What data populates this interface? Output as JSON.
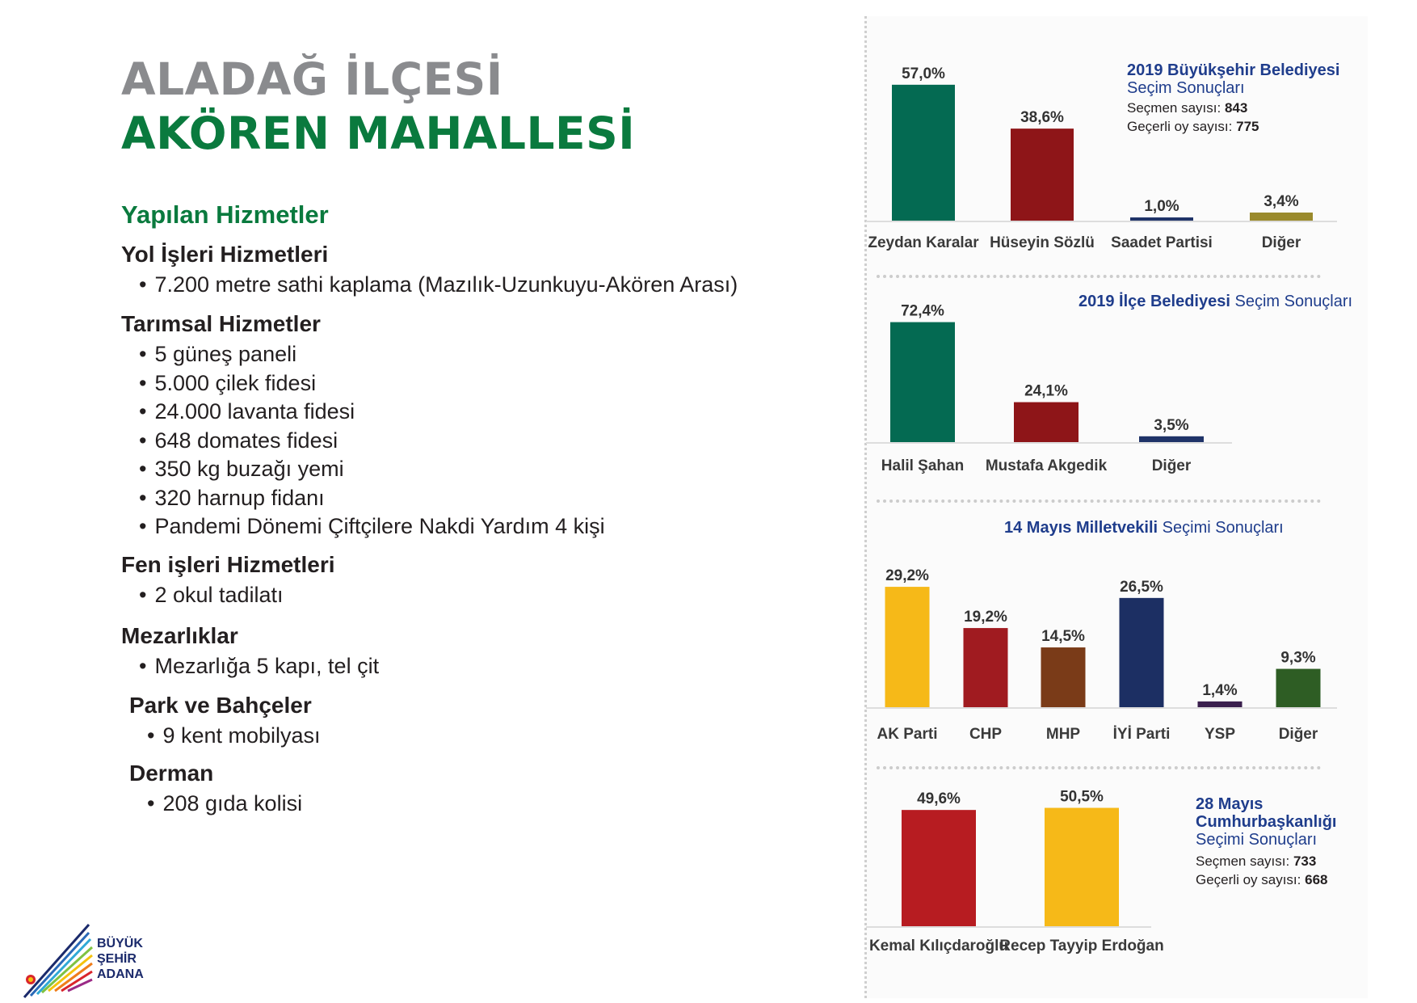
{
  "header": {
    "title_line1": "ALADAĞ İLÇESİ",
    "title_line2": "AKÖREN MAHALLESİ"
  },
  "services": {
    "heading": "Yapılan Hizmetler",
    "sections": [
      {
        "title": "Yol İşleri Hizmetleri",
        "items": [
          "7.200 metre sathi kaplama (Mazılık-Uzunkuyu-Akören Arası)"
        ]
      },
      {
        "title": "Tarımsal Hizmetler",
        "items": [
          "5 güneş paneli",
          "5.000 çilek fidesi",
          "24.000 lavanta fidesi",
          "648 domates fidesi",
          "350 kg buzağı yemi",
          "320 harnup fidanı",
          "Pandemi Dönemi Çiftçilere Nakdi Yardım 4 kişi"
        ]
      },
      {
        "title": "Fen işleri Hizmetleri",
        "items": [
          "2 okul tadilatı"
        ]
      },
      {
        "title": "Mezarlıklar",
        "items": [
          "Mezarlığa 5 kapı, tel çit"
        ]
      },
      {
        "title": "Park ve Bahçeler",
        "items": [
          "9 kent mobilyası"
        ]
      },
      {
        "title": "Derman",
        "items": [
          "208 gıda kolisi"
        ]
      }
    ]
  },
  "logo": {
    "line1": "BÜYÜK",
    "line2": "ŞEHİR",
    "line3": "ADANA"
  },
  "info_blocks": {
    "metro": {
      "title_bold": "2019 Büyükşehir Belediyesi",
      "title_light": "Seçim Sonuçları",
      "voters_label": "Seçmen sayısı: ",
      "voters_value": "843",
      "valid_label": "Geçerli oy sayısı: ",
      "valid_value": "775"
    },
    "district": {
      "title_bold": "2019 İlçe Belediyesi",
      "title_light": " Seçim Sonuçları"
    },
    "parliament": {
      "title_bold": "14 Mayıs Milletvekili",
      "title_light": " Seçimi Sonuçları"
    },
    "president": {
      "title_bold1": "28 Mayıs",
      "title_bold2": "Cumhurbaşkanlığı",
      "title_light": "Seçimi Sonuçları",
      "voters_label": "Seçmen sayısı: ",
      "voters_value": "733",
      "valid_label": "Geçerli oy sayısı: ",
      "valid_value": "668"
    }
  },
  "chart_data": [
    {
      "type": "bar",
      "title": "2019 Büyükşehir Belediyesi Seçim Sonuçları",
      "categories": [
        "Zeydan Karalar",
        "Hüseyin Sözlü",
        "Saadet Partisi",
        "Diğer"
      ],
      "values": [
        57.0,
        38.6,
        1.0,
        3.4
      ],
      "value_labels": [
        "57,0%",
        "38,6%",
        "1,0%",
        "3,4%"
      ],
      "colors": [
        "#046a52",
        "#8e1518",
        "#1f3368",
        "#9a8a2c"
      ]
    },
    {
      "type": "bar",
      "title": "2019 İlçe Belediyesi Seçim Sonuçları",
      "categories": [
        "Halil Şahan",
        "Mustafa Akgedik",
        "Diğer"
      ],
      "values": [
        72.4,
        24.1,
        3.5
      ],
      "value_labels": [
        "72,4%",
        "24,1%",
        "3,5%"
      ],
      "colors": [
        "#046a52",
        "#8e1518",
        "#1f3368"
      ]
    },
    {
      "type": "bar",
      "title": "14 Mayıs Milletvekili Seçimi Sonuçları",
      "categories": [
        "AK Parti",
        "CHP",
        "MHP",
        "İYİ Parti",
        "YSP",
        "Diğer"
      ],
      "values": [
        29.2,
        19.2,
        14.5,
        26.5,
        1.4,
        9.3
      ],
      "value_labels": [
        "29,2%",
        "19,2%",
        "14,5%",
        "26,5%",
        "1,4%",
        "9,3%"
      ],
      "colors": [
        "#f6b918",
        "#a01b20",
        "#7a3b18",
        "#1c2f63",
        "#3a1f4d",
        "#2e5d24"
      ]
    },
    {
      "type": "bar",
      "title": "28 Mayıs Cumhurbaşkanlığı Seçimi Sonuçları",
      "categories": [
        "Kemal Kılıçdaroğlu",
        "Recep Tayyip Erdoğan"
      ],
      "values": [
        49.6,
        50.5
      ],
      "value_labels": [
        "49,6%",
        "50,5%"
      ],
      "colors": [
        "#b71c21",
        "#f6b918"
      ]
    }
  ]
}
